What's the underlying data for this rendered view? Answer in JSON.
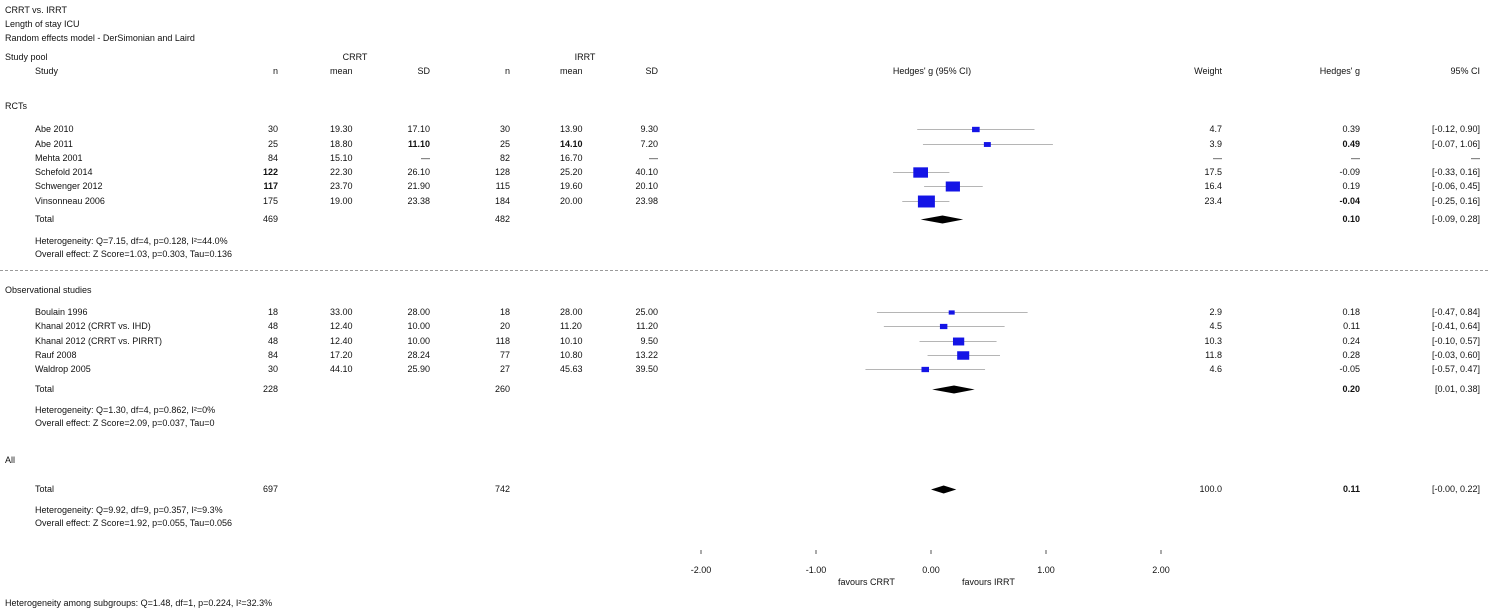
{
  "header": {
    "title": "CRRT vs. IRRT",
    "outcome": "Length of stay ICU",
    "model": "Random effects model - DerSimonian and Laird"
  },
  "columns": {
    "study_pool": "Study pool",
    "study": "Study",
    "crrt_group": "CRRT",
    "irrt_group": "IRRT",
    "n": "n",
    "mean": "mean",
    "sd": "SD",
    "effect_col": "Hedges' g (95% CI)",
    "weight": "Weight",
    "g": "Hedges' g",
    "ci": "95% CI"
  },
  "groups": [
    {
      "name": "RCTs",
      "studies": [
        {
          "study": "Abe 2010",
          "crrt_n": "30",
          "crrt_mean": "19.30",
          "crrt_sd": "17.10",
          "irrt_n": "30",
          "irrt_mean": "13.90",
          "irrt_sd": "9.30",
          "weight": "4.7",
          "g": "0.39",
          "ci": "[-0.12, 0.90]",
          "bold": []
        },
        {
          "study": "Abe 2011",
          "crrt_n": "25",
          "crrt_mean": "18.80",
          "crrt_sd": "11.10",
          "irrt_n": "25",
          "irrt_mean": "14.10",
          "irrt_sd": "7.20",
          "weight": "3.9",
          "g": "0.49",
          "ci": "[-0.07, 1.06]",
          "bold": [
            "crrt_sd",
            "irrt_mean",
            "g"
          ]
        },
        {
          "study": "Mehta 2001",
          "crrt_n": "84",
          "crrt_mean": "15.10",
          "crrt_sd": "—",
          "irrt_n": "82",
          "irrt_mean": "16.70",
          "irrt_sd": "—",
          "weight": "—",
          "g": "—",
          "ci": "—",
          "bold": []
        },
        {
          "study": "Schefold 2014",
          "crrt_n": "122",
          "crrt_mean": "22.30",
          "crrt_sd": "26.10",
          "irrt_n": "128",
          "irrt_mean": "25.20",
          "irrt_sd": "40.10",
          "weight": "17.5",
          "g": "-0.09",
          "ci": "[-0.33, 0.16]",
          "bold": [
            "crrt_n"
          ]
        },
        {
          "study": "Schwenger 2012",
          "crrt_n": "117",
          "crrt_mean": "23.70",
          "crrt_sd": "21.90",
          "irrt_n": "115",
          "irrt_mean": "19.60",
          "irrt_sd": "20.10",
          "weight": "16.4",
          "g": "0.19",
          "ci": "[-0.06, 0.45]",
          "bold": [
            "crrt_n"
          ]
        },
        {
          "study": "Vinsonneau 2006",
          "crrt_n": "175",
          "crrt_mean": "19.00",
          "crrt_sd": "23.38",
          "irrt_n": "184",
          "irrt_mean": "20.00",
          "irrt_sd": "23.98",
          "weight": "23.4",
          "g": "-0.04",
          "ci": "[-0.25, 0.16]",
          "bold": [
            "g"
          ]
        }
      ],
      "total": {
        "label": "Total",
        "crrt_n": "469",
        "irrt_n": "482",
        "g": "0.10",
        "ci": "[-0.09, 0.28]"
      },
      "heterogeneity": "Heterogeneity: Q=7.15, df=4, p=0.128, I²=44.0%",
      "overall": "Overall effect: Z Score=1.03, p=0.303, Tau=0.136"
    },
    {
      "name": "Observational studies",
      "studies": [
        {
          "study": "Boulain 1996",
          "crrt_n": "18",
          "crrt_mean": "33.00",
          "crrt_sd": "28.00",
          "irrt_n": "18",
          "irrt_mean": "28.00",
          "irrt_sd": "25.00",
          "weight": "2.9",
          "g": "0.18",
          "ci": "[-0.47, 0.84]",
          "bold": []
        },
        {
          "study": "Khanal 2012 (CRRT vs. IHD)",
          "crrt_n": "48",
          "crrt_mean": "12.40",
          "crrt_sd": "10.00",
          "irrt_n": "20",
          "irrt_mean": "11.20",
          "irrt_sd": "11.20",
          "weight": "4.5",
          "g": "0.11",
          "ci": "[-0.41, 0.64]",
          "bold": []
        },
        {
          "study": "Khanal 2012 (CRRT vs. PIRRT)",
          "crrt_n": "48",
          "crrt_mean": "12.40",
          "crrt_sd": "10.00",
          "irrt_n": "118",
          "irrt_mean": "10.10",
          "irrt_sd": "9.50",
          "weight": "10.3",
          "g": "0.24",
          "ci": "[-0.10, 0.57]",
          "bold": []
        },
        {
          "study": "Rauf 2008",
          "crrt_n": "84",
          "crrt_mean": "17.20",
          "crrt_sd": "28.24",
          "irrt_n": "77",
          "irrt_mean": "10.80",
          "irrt_sd": "13.22",
          "weight": "11.8",
          "g": "0.28",
          "ci": "[-0.03, 0.60]",
          "bold": []
        },
        {
          "study": "Waldrop 2005",
          "crrt_n": "30",
          "crrt_mean": "44.10",
          "crrt_sd": "25.90",
          "irrt_n": "27",
          "irrt_mean": "45.63",
          "irrt_sd": "39.50",
          "weight": "4.6",
          "g": "-0.05",
          "ci": "[-0.57, 0.47]",
          "bold": []
        }
      ],
      "total": {
        "label": "Total",
        "crrt_n": "228",
        "irrt_n": "260",
        "g": "0.20",
        "ci": "[0.01, 0.38]"
      },
      "heterogeneity": "Heterogeneity: Q=1.30, df=4, p=0.862, I²=0%",
      "overall": "Overall effect: Z Score=2.09, p=0.037, Tau=0"
    }
  ],
  "all": {
    "name": "All",
    "total": {
      "label": "Total",
      "crrt_n": "697",
      "irrt_n": "742",
      "weight": "100.0",
      "g": "0.11",
      "ci": "[-0.00, 0.22]"
    },
    "heterogeneity": "Heterogeneity: Q=9.92, df=9, p=0.357, I²=9.3%",
    "overall": "Overall effect: Z Score=1.92, p=0.055, Tau=0.056"
  },
  "axis": {
    "ticks": [
      -2,
      -1,
      0,
      1,
      2
    ],
    "tick_labels": [
      "-2.00",
      "-1.00",
      "0.00",
      "1.00",
      "2.00"
    ],
    "favours_left": "favours CRRT",
    "favours_right": "favours IRRT"
  },
  "footer": "Heterogeneity among subgroups: Q=1.48, df=1, p=0.224, I²=32.3%",
  "colors": {
    "square": "#1414e6",
    "diamond": "#000000",
    "ci_line": "#b5b5b5"
  },
  "chart_data": {
    "type": "forest",
    "title": "CRRT vs. IRRT",
    "subtitle": "Length of stay ICU",
    "xlabel": "",
    "xlim": [
      -2,
      2
    ],
    "grid": false,
    "null_line": 0,
    "studies": [
      {
        "name": "Abe 2010",
        "group": "RCTs",
        "g": 0.39,
        "lo": -0.12,
        "hi": 0.9,
        "weight": 4.7
      },
      {
        "name": "Abe 2011",
        "group": "RCTs",
        "g": 0.49,
        "lo": -0.07,
        "hi": 1.06,
        "weight": 3.9
      },
      {
        "name": "Mehta 2001",
        "group": "RCTs",
        "g": null,
        "lo": null,
        "hi": null,
        "weight": null
      },
      {
        "name": "Schefold 2014",
        "group": "RCTs",
        "g": -0.09,
        "lo": -0.33,
        "hi": 0.16,
        "weight": 17.5
      },
      {
        "name": "Schwenger 2012",
        "group": "RCTs",
        "g": 0.19,
        "lo": -0.06,
        "hi": 0.45,
        "weight": 16.4
      },
      {
        "name": "Vinsonneau 2006",
        "group": "RCTs",
        "g": -0.04,
        "lo": -0.25,
        "hi": 0.16,
        "weight": 23.4
      },
      {
        "name": "Boulain 1996",
        "group": "Observational studies",
        "g": 0.18,
        "lo": -0.47,
        "hi": 0.84,
        "weight": 2.9
      },
      {
        "name": "Khanal 2012 (CRRT vs. IHD)",
        "group": "Observational studies",
        "g": 0.11,
        "lo": -0.41,
        "hi": 0.64,
        "weight": 4.5
      },
      {
        "name": "Khanal 2012 (CRRT vs. PIRRT)",
        "group": "Observational studies",
        "g": 0.24,
        "lo": -0.1,
        "hi": 0.57,
        "weight": 10.3
      },
      {
        "name": "Rauf 2008",
        "group": "Observational studies",
        "g": 0.28,
        "lo": -0.03,
        "hi": 0.6,
        "weight": 11.8
      },
      {
        "name": "Waldrop 2005",
        "group": "Observational studies",
        "g": -0.05,
        "lo": -0.57,
        "hi": 0.47,
        "weight": 4.6
      }
    ],
    "summaries": [
      {
        "name": "Total",
        "group": "RCTs",
        "g": 0.1,
        "lo": -0.09,
        "hi": 0.28
      },
      {
        "name": "Total",
        "group": "Observational studies",
        "g": 0.2,
        "lo": 0.01,
        "hi": 0.38
      },
      {
        "name": "Total",
        "group": "All",
        "g": 0.11,
        "lo": -0.0,
        "hi": 0.22
      }
    ]
  }
}
